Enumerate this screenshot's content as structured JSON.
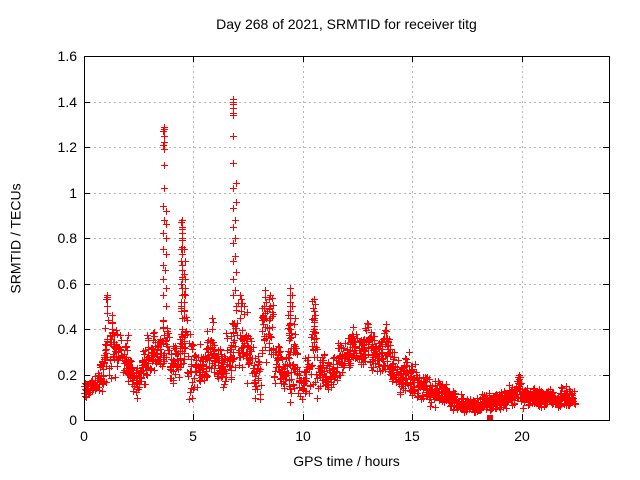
{
  "chart_data": {
    "type": "scatter",
    "title": "Day 268 of 2021, SRMTID for receiver titg",
    "xlabel": "GPS time / hours",
    "ylabel": "SRMTID / TECUs",
    "xlim": [
      0,
      24
    ],
    "ylim": [
      0,
      1.6
    ],
    "xticks": [
      0,
      5,
      10,
      15,
      20
    ],
    "xtick_labels": [
      "0",
      "5",
      "10",
      "15",
      "20"
    ],
    "yticks": [
      0,
      0.2,
      0.4,
      0.6,
      0.8,
      1.0,
      1.2,
      1.4,
      1.6
    ],
    "ytick_labels": [
      "0",
      "0.2",
      "0.4",
      "0.6",
      "0.8",
      "1",
      "1.2",
      "1.4",
      "1.6"
    ],
    "grid": true,
    "grid_color": "#b5b5b5",
    "marker": "plus",
    "marker_color": "#ff0000",
    "axis_color": "#000000",
    "seed": 42,
    "time_extent_hours": [
      0,
      22.45
    ],
    "max_value": 1.41,
    "bands": [
      [
        0.0,
        0.3,
        0.09,
        0.18,
        26
      ],
      [
        0.3,
        0.6,
        0.1,
        0.2,
        26
      ],
      [
        0.6,
        0.9,
        0.12,
        0.27,
        26
      ],
      [
        0.9,
        1.1,
        0.15,
        0.42,
        20
      ],
      [
        1.1,
        1.4,
        0.15,
        0.46,
        26
      ],
      [
        1.4,
        1.7,
        0.18,
        0.42,
        26
      ],
      [
        1.7,
        2.0,
        0.15,
        0.38,
        26
      ],
      [
        2.0,
        2.3,
        0.12,
        0.3,
        26
      ],
      [
        2.3,
        2.6,
        0.08,
        0.26,
        26
      ],
      [
        2.6,
        2.9,
        0.14,
        0.33,
        26
      ],
      [
        2.9,
        3.2,
        0.18,
        0.4,
        26
      ],
      [
        3.2,
        3.5,
        0.2,
        0.42,
        26
      ],
      [
        3.5,
        3.9,
        0.18,
        0.45,
        28
      ],
      [
        3.9,
        4.2,
        0.12,
        0.35,
        26
      ],
      [
        4.2,
        4.4,
        0.15,
        0.4,
        18
      ],
      [
        4.4,
        4.75,
        0.15,
        0.6,
        30
      ],
      [
        4.75,
        5.0,
        0.08,
        0.4,
        22
      ],
      [
        5.0,
        5.3,
        0.12,
        0.33,
        26
      ],
      [
        5.3,
        5.6,
        0.15,
        0.36,
        26
      ],
      [
        5.6,
        5.9,
        0.17,
        0.42,
        26
      ],
      [
        5.9,
        6.2,
        0.15,
        0.38,
        26
      ],
      [
        6.2,
        6.5,
        0.12,
        0.34,
        26
      ],
      [
        6.5,
        6.75,
        0.15,
        0.42,
        22
      ],
      [
        6.75,
        7.05,
        0.2,
        0.55,
        24
      ],
      [
        7.05,
        7.45,
        0.18,
        0.52,
        30
      ],
      [
        7.45,
        7.75,
        0.15,
        0.4,
        24
      ],
      [
        7.75,
        8.1,
        0.08,
        0.3,
        28
      ],
      [
        8.1,
        8.65,
        0.22,
        0.56,
        44
      ],
      [
        8.65,
        9.0,
        0.15,
        0.38,
        28
      ],
      [
        9.0,
        9.3,
        0.1,
        0.32,
        26
      ],
      [
        9.3,
        9.55,
        0.07,
        0.58,
        26
      ],
      [
        9.55,
        9.8,
        0.08,
        0.4,
        22
      ],
      [
        9.8,
        10.1,
        0.08,
        0.26,
        26
      ],
      [
        10.1,
        10.35,
        0.1,
        0.3,
        20
      ],
      [
        10.35,
        10.7,
        0.08,
        0.53,
        30
      ],
      [
        10.7,
        11.0,
        0.1,
        0.33,
        24
      ],
      [
        11.0,
        11.3,
        0.08,
        0.27,
        26
      ],
      [
        11.3,
        11.6,
        0.12,
        0.3,
        26
      ],
      [
        11.6,
        11.9,
        0.18,
        0.37,
        26
      ],
      [
        11.9,
        12.2,
        0.22,
        0.4,
        28
      ],
      [
        12.2,
        12.5,
        0.24,
        0.42,
        28
      ],
      [
        12.5,
        12.8,
        0.22,
        0.39,
        28
      ],
      [
        12.8,
        13.1,
        0.24,
        0.44,
        28
      ],
      [
        13.1,
        13.4,
        0.2,
        0.41,
        28
      ],
      [
        13.4,
        13.7,
        0.18,
        0.37,
        26
      ],
      [
        13.7,
        14.0,
        0.15,
        0.42,
        26
      ],
      [
        14.0,
        14.3,
        0.12,
        0.31,
        26
      ],
      [
        14.3,
        14.6,
        0.1,
        0.28,
        26
      ],
      [
        14.6,
        14.9,
        0.12,
        0.33,
        26
      ],
      [
        14.9,
        15.2,
        0.08,
        0.26,
        26
      ],
      [
        15.2,
        15.5,
        0.07,
        0.21,
        26
      ],
      [
        15.5,
        15.8,
        0.08,
        0.22,
        26
      ],
      [
        15.8,
        16.1,
        0.05,
        0.18,
        26
      ],
      [
        16.1,
        16.4,
        0.06,
        0.19,
        26
      ],
      [
        16.4,
        16.7,
        0.05,
        0.16,
        26
      ],
      [
        16.7,
        17.0,
        0.04,
        0.14,
        26
      ],
      [
        17.0,
        17.3,
        0.03,
        0.12,
        26
      ],
      [
        17.3,
        17.6,
        0.03,
        0.1,
        26
      ],
      [
        17.6,
        17.9,
        0.03,
        0.11,
        26
      ],
      [
        17.9,
        18.2,
        0.03,
        0.1,
        26
      ],
      [
        18.2,
        18.5,
        0.04,
        0.12,
        26
      ],
      [
        18.5,
        18.8,
        0.03,
        0.12,
        26
      ],
      [
        18.8,
        19.1,
        0.04,
        0.13,
        26
      ],
      [
        19.1,
        19.4,
        0.04,
        0.14,
        26
      ],
      [
        19.4,
        19.7,
        0.05,
        0.16,
        26
      ],
      [
        19.7,
        20.0,
        0.06,
        0.2,
        26
      ],
      [
        20.0,
        20.3,
        0.05,
        0.16,
        26
      ],
      [
        20.3,
        20.6,
        0.06,
        0.16,
        26
      ],
      [
        20.6,
        20.9,
        0.05,
        0.15,
        26
      ],
      [
        20.9,
        21.2,
        0.05,
        0.14,
        26
      ],
      [
        21.2,
        21.5,
        0.06,
        0.15,
        26
      ],
      [
        21.5,
        21.8,
        0.05,
        0.14,
        26
      ],
      [
        21.8,
        22.1,
        0.06,
        0.16,
        26
      ],
      [
        22.1,
        22.45,
        0.05,
        0.14,
        28
      ]
    ],
    "spikes": [
      {
        "t": 1.05,
        "jitter": 0.05,
        "values": [
          0.44,
          0.47,
          0.5,
          0.53,
          0.55,
          0.54,
          0.53,
          0.55
        ]
      },
      {
        "t": 1.28,
        "jitter": 0.06,
        "values": [
          0.4,
          0.43,
          0.46
        ]
      },
      {
        "t": 3.64,
        "jitter": 0.05,
        "values": [
          0.55,
          0.62,
          0.68,
          0.75,
          0.82,
          0.88,
          0.94,
          1.02,
          1.12,
          1.19,
          1.22,
          1.25,
          1.27,
          1.29,
          1.28,
          1.21
        ]
      },
      {
        "t": 3.74,
        "jitter": 0.05,
        "values": [
          0.5,
          0.58,
          0.66,
          0.73,
          0.8,
          0.86,
          0.92
        ]
      },
      {
        "t": 4.47,
        "jitter": 0.05,
        "values": [
          0.45,
          0.5,
          0.55,
          0.6,
          0.63,
          0.66,
          0.7,
          0.73,
          0.76,
          0.79,
          0.82,
          0.85,
          0.87,
          0.88,
          0.84,
          0.8,
          0.75,
          0.68,
          0.62,
          0.58,
          0.52,
          0.48
        ]
      },
      {
        "t": 4.58,
        "jitter": 0.05,
        "values": [
          0.45,
          0.52,
          0.58,
          0.64,
          0.7,
          0.75,
          0.62,
          0.55
        ]
      },
      {
        "t": 5.85,
        "jitter": 0.06,
        "values": [
          0.4,
          0.43,
          0.45
        ]
      },
      {
        "t": 6.82,
        "jitter": 0.05,
        "values": [
          0.55,
          0.62,
          0.7,
          0.78,
          0.85,
          0.93,
          1.02,
          1.13,
          1.25,
          1.34,
          1.37,
          1.4,
          1.41,
          1.39,
          1.35
        ]
      },
      {
        "t": 6.93,
        "jitter": 0.05,
        "values": [
          0.5,
          0.57,
          0.65,
          0.72,
          0.8,
          0.88,
          0.96,
          1.04
        ]
      },
      {
        "t": 7.15,
        "jitter": 0.06,
        "values": [
          0.45,
          0.5,
          0.53,
          0.55,
          0.48
        ]
      },
      {
        "t": 8.28,
        "jitter": 0.06,
        "values": [
          0.45,
          0.5,
          0.54,
          0.57,
          0.52,
          0.47
        ]
      },
      {
        "t": 8.47,
        "jitter": 0.06,
        "values": [
          0.44,
          0.49,
          0.53,
          0.55,
          0.5
        ]
      },
      {
        "t": 9.42,
        "jitter": 0.05,
        "values": [
          0.4,
          0.45,
          0.5,
          0.55,
          0.58,
          0.52,
          0.46,
          0.42,
          0.36,
          0.3,
          0.24,
          0.18,
          0.12,
          0.08
        ]
      },
      {
        "t": 9.62,
        "jitter": 0.06,
        "values": [
          0.38,
          0.42,
          0.45
        ]
      },
      {
        "t": 10.52,
        "jitter": 0.06,
        "values": [
          0.36,
          0.4,
          0.44,
          0.46,
          0.45,
          0.43,
          0.48,
          0.51,
          0.53
        ]
      },
      {
        "t": 13.82,
        "jitter": 0.06,
        "values": [
          0.36,
          0.39,
          0.42
        ]
      },
      {
        "t": 19.85,
        "jitter": 0.08,
        "values": [
          0.17,
          0.19,
          0.2
        ]
      }
    ],
    "outlier_square": {
      "t": 18.55,
      "value": 0.01
    }
  }
}
